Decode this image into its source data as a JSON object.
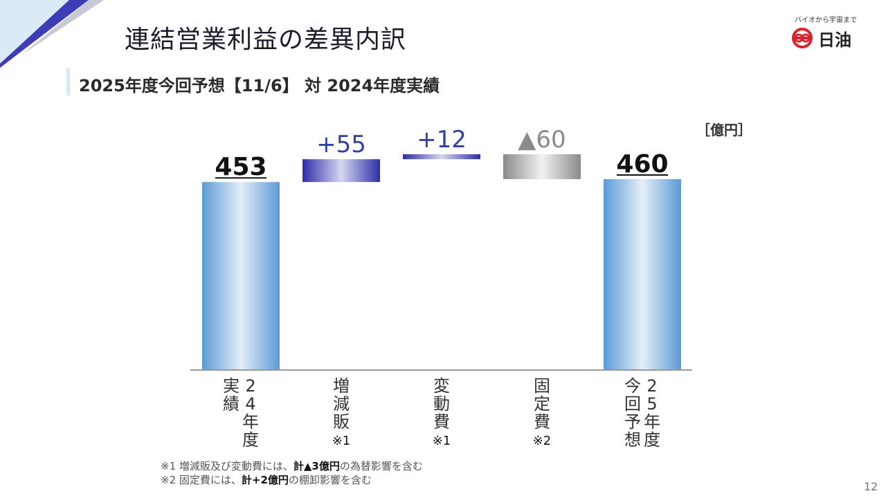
{
  "title": "連結営業利益の差異内訳",
  "subtitle": "2025年度今回予想【11/6】 対 2024年度実績",
  "logo": {
    "tagline": "バイオから宇宙まで",
    "name": "日油"
  },
  "unit": "［億円］",
  "chart_data": {
    "type": "waterfall",
    "unit": "億円",
    "categories": [
      "24年度実績",
      "増減販",
      "変動費",
      "固定費",
      "25年度今回予想"
    ],
    "category_labels": [
      {
        "columns": [
          "24年度",
          "実績"
        ],
        "note": ""
      },
      {
        "columns": [
          "増減販"
        ],
        "note": "※1"
      },
      {
        "columns": [
          "変動費"
        ],
        "note": "※1"
      },
      {
        "columns": [
          "固定費"
        ],
        "note": "※2"
      },
      {
        "columns": [
          "25年度",
          "今回予想"
        ],
        "note": ""
      }
    ],
    "steps": [
      {
        "kind": "total",
        "value": 453,
        "label": "453"
      },
      {
        "kind": "delta",
        "value": 55,
        "label": "+55"
      },
      {
        "kind": "delta",
        "value": 12,
        "label": "+12"
      },
      {
        "kind": "delta",
        "value": -60,
        "label": "▲60"
      },
      {
        "kind": "total",
        "value": 460,
        "label": "460"
      }
    ],
    "colors": {
      "total": "#5b9bd5",
      "increase": "#3535b0",
      "decrease": "#8a8a8a",
      "increase_label": "#2f3fa8",
      "decrease_label": "#8a8a8a",
      "total_label": "#111111"
    }
  },
  "footnotes": [
    {
      "prefix": "※1 増減販及び変動費には、",
      "bold": "計▲3億円",
      "suffix": "の為替影響を含む"
    },
    {
      "prefix": "※2 固定費には、",
      "bold": "計+2億円",
      "suffix": "の棚卸影響を含む"
    }
  ],
  "page_number": "12"
}
